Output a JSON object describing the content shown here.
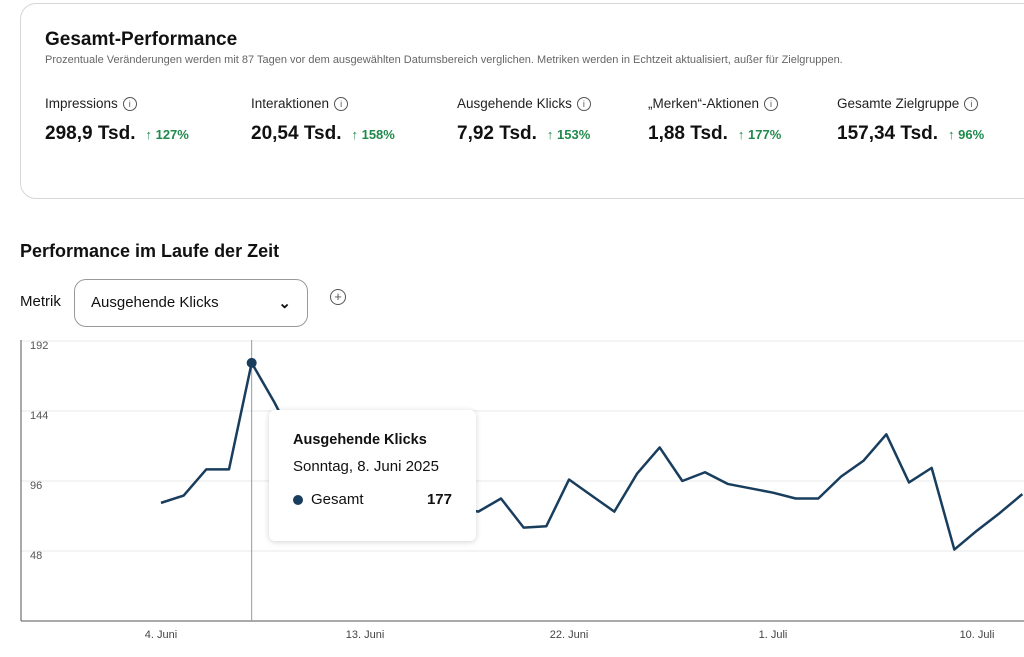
{
  "overview": {
    "title": "Gesamt-Performance",
    "subtitle": "Prozentuale Veränderungen werden mit 87 Tagen vor dem ausgewählten Datumsbereich verglichen. Metriken werden in Echtzeit aktualisiert, außer für Zielgruppen.",
    "metrics": [
      {
        "label": "Impressions",
        "value": "298,9 Tsd.",
        "change": "↑ 127%"
      },
      {
        "label": "Interaktionen",
        "value": "20,54 Tsd.",
        "change": "↑ 158%"
      },
      {
        "label": "Ausgehende Klicks",
        "value": "7,92 Tsd.",
        "change": "↑ 153%"
      },
      {
        "label": "„Merken“-Aktionen",
        "value": "1,88 Tsd.",
        "change": "↑ 177%"
      },
      {
        "label": "Gesamte Zielgruppe",
        "value": "157,34 Tsd.",
        "change": "↑ 96%"
      }
    ]
  },
  "section": {
    "title": "Performance im Laufe der Zeit",
    "metric_label": "Metrik",
    "metric_selected": "Ausgehende Klicks",
    "chevron": "⌄",
    "add": "+"
  },
  "tooltip": {
    "title": "Ausgehende Klicks",
    "date": "Sonntag, 8. Juni 2025",
    "series": "Gesamt",
    "value": "177"
  },
  "colors": {
    "line": "#183d5d",
    "positive": "#1f8a4c"
  },
  "chart_data": {
    "type": "line",
    "ylim": [
      0,
      192
    ],
    "yticks": [
      "192",
      "144",
      "96",
      "48"
    ],
    "xticks": [
      "4. Juni",
      "13. Juni",
      "22. Juni",
      "1. Juli",
      "10. Juli"
    ],
    "series": [
      {
        "name": "Gesamt",
        "start": "4. Juni",
        "values": [
          81,
          86,
          104,
          104,
          177,
          150,
          120,
          100,
          95,
          90,
          85,
          80,
          88,
          78,
          75,
          84,
          64,
          65,
          97,
          86,
          75,
          101,
          119,
          96,
          102,
          94,
          91,
          88,
          84,
          84,
          99,
          110,
          128,
          95,
          105,
          49,
          62,
          74,
          87
        ]
      }
    ]
  }
}
